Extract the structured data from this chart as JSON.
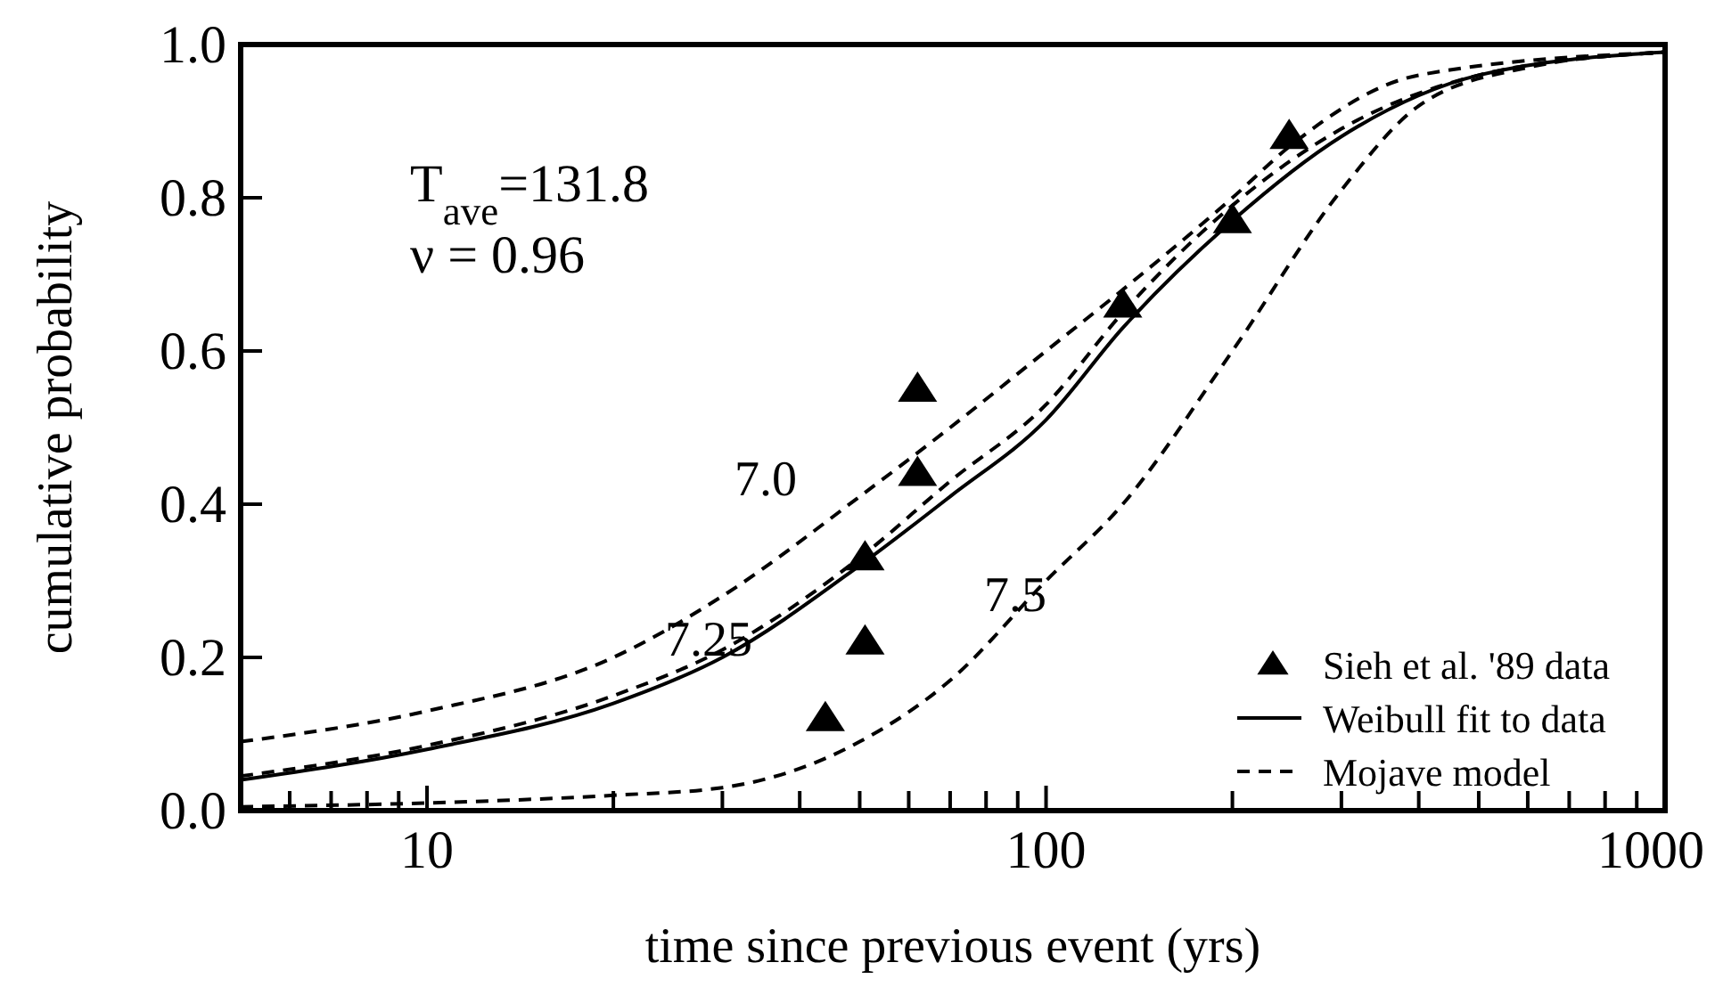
{
  "chart_data": {
    "type": "line",
    "xlabel": "time since previous event (yrs)",
    "ylabel": "cumulative probability",
    "log": "x",
    "xlim": [
      5,
      1000
    ],
    "ylim": [
      0,
      1
    ],
    "xticks": [
      {
        "value": 6,
        "label": null
      },
      {
        "value": 7,
        "label": null
      },
      {
        "value": 8,
        "label": null
      },
      {
        "value": 9,
        "label": null
      },
      10,
      {
        "value": 20,
        "label": null
      },
      {
        "value": 30,
        "label": null
      },
      {
        "value": 40,
        "label": null
      },
      {
        "value": 50,
        "label": null
      },
      {
        "value": 60,
        "label": null
      },
      {
        "value": 70,
        "label": null
      },
      {
        "value": 80,
        "label": null
      },
      {
        "value": 90,
        "label": null
      },
      100,
      {
        "value": 200,
        "label": null
      },
      {
        "value": 300,
        "label": null
      },
      {
        "value": 400,
        "label": null
      },
      {
        "value": 500,
        "label": null
      },
      {
        "value": 600,
        "label": null
      },
      {
        "value": 700,
        "label": null
      },
      {
        "value": 800,
        "label": null
      },
      {
        "value": 900,
        "label": null
      },
      1000
    ],
    "yticks": [
      {
        "value": 0,
        "label": "0.0"
      },
      {
        "value": 0.2,
        "label": "0.2"
      },
      {
        "value": 0.4,
        "label": "0.4"
      },
      {
        "value": 0.6,
        "label": "0.6"
      },
      {
        "value": 0.8,
        "label": "0.8"
      },
      {
        "value": 1,
        "label": "1.0"
      }
    ],
    "grid": false,
    "legend": "bottom right",
    "annotations": [
      "T$_{ave}$=131.8",
      "ν = 0.96",
      "7.0",
      "7.25",
      "7.5"
    ],
    "series": [
      {
        "name": "Sieh et al. '89 data",
        "type": "scatter",
        "marker": "triangle",
        "color": "#000000",
        "x": [
          44,
          51,
          51,
          62,
          62,
          133,
          200,
          247
        ],
        "values": [
          0.12,
          0.22,
          0.33,
          0.44,
          0.55,
          0.66,
          0.77,
          0.88
        ]
      },
      {
        "name": "Weibull fit to data",
        "type": "line",
        "line_style": "solid",
        "color": "#000000",
        "x": [
          5,
          10,
          20,
          30,
          50,
          70,
          100,
          133,
          200,
          300,
          500,
          1000
        ],
        "values": [
          0.04,
          0.08,
          0.14,
          0.2,
          0.32,
          0.41,
          0.51,
          0.63,
          0.77,
          0.88,
          0.96,
          0.99
        ]
      },
      {
        "name": "Mojave model",
        "type": "line",
        "line_style": "dashed",
        "color": "#000000",
        "x": [
          5,
          10,
          20,
          30,
          50,
          70,
          100,
          133,
          200,
          250,
          400,
          1000
        ],
        "values": [
          0.09,
          0.13,
          0.2,
          0.28,
          0.41,
          0.5,
          0.6,
          0.68,
          0.8,
          0.87,
          0.96,
          0.99
        ]
      },
      {
        "type": "line",
        "line_style": "dashed",
        "color": "#000000",
        "x": [
          5,
          10,
          20,
          30,
          50,
          70,
          100,
          133,
          200,
          300,
          500,
          1000
        ],
        "values": [
          0.045,
          0.085,
          0.15,
          0.21,
          0.33,
          0.43,
          0.53,
          0.65,
          0.79,
          0.89,
          0.96,
          0.99
        ]
      },
      {
        "type": "line",
        "line_style": "dashed",
        "color": "#000000",
        "x": [
          5,
          10,
          20,
          30,
          50,
          70,
          100,
          133,
          200,
          300,
          400,
          600,
          1000
        ],
        "values": [
          0.005,
          0.01,
          0.02,
          0.03,
          0.09,
          0.17,
          0.3,
          0.4,
          0.6,
          0.81,
          0.92,
          0.97,
          0.99
        ]
      }
    ]
  }
}
